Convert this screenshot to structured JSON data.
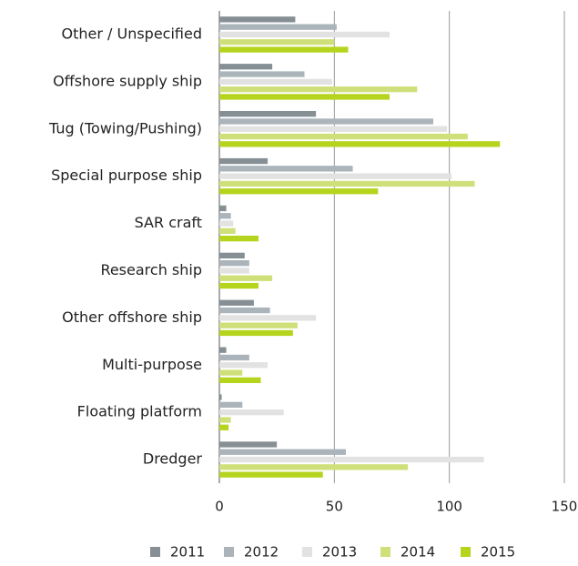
{
  "chart_data": {
    "type": "hbar",
    "categories": [
      "Other / Unspecified",
      "Offshore supply ship",
      "Tug (Towing/Pushing)",
      "Special purpose ship",
      "SAR craft",
      "Research ship",
      "Other offshore ship",
      "Multi-purpose",
      "Floating platform",
      "Dredger"
    ],
    "series": [
      {
        "name": "2011",
        "color": "#858f94",
        "values": [
          33,
          23,
          42,
          21,
          3,
          11,
          15,
          3,
          1,
          25
        ]
      },
      {
        "name": "2012",
        "color": "#aab4ba",
        "values": [
          51,
          37,
          93,
          58,
          5,
          13,
          22,
          13,
          10,
          55
        ]
      },
      {
        "name": "2013",
        "color": "#e2e2e2",
        "values": [
          74,
          49,
          99,
          101,
          6,
          13,
          42,
          21,
          28,
          115
        ]
      },
      {
        "name": "2014",
        "color": "#cfe07a",
        "values": [
          50,
          86,
          108,
          111,
          7,
          23,
          34,
          10,
          5,
          82
        ]
      },
      {
        "name": "2015",
        "color": "#b5d41d",
        "values": [
          56,
          74,
          122,
          69,
          17,
          17,
          32,
          18,
          4,
          45
        ]
      }
    ],
    "xlim": [
      0,
      150
    ],
    "xticks": [
      0,
      50,
      100,
      150
    ],
    "grid": true,
    "legend": "bottom"
  }
}
